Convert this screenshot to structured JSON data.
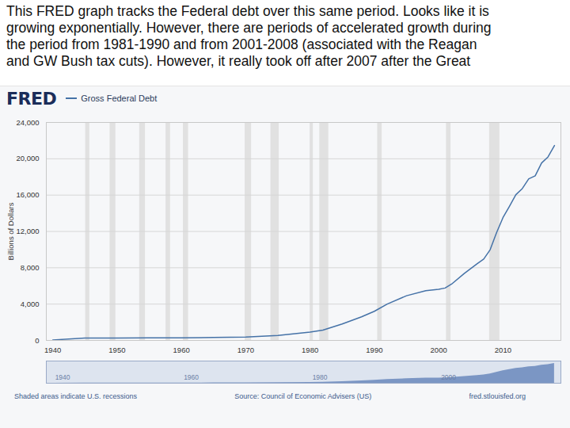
{
  "slide_text": [
    "This FRED graph tracks the Federal debt over this same period. Looks like it is",
    "growing exponentially. However, there are periods of accelerated growth during",
    "the period from 1981-1990 and from 2001-2008 (associated with the Reagan",
    "and GW Bush tax cuts). However, it really took off after 2007 after the Great"
  ],
  "logo": "FRED",
  "note": "Shaded areas indicate U.S. recessions",
  "source": "Source: Council of Economic Advisers (US)",
  "url": "fred.stlouisfed.org",
  "chart_data": [
    {
      "type": "line",
      "ylabel": "Billions of Dollars",
      "grid": true,
      "x": [
        1940,
        1945,
        1950,
        1955,
        1960,
        1965,
        1970,
        1975,
        1980,
        1982,
        1985,
        1988,
        1990,
        1992,
        1995,
        1998,
        2000,
        2001,
        2002,
        2004,
        2006,
        2007,
        2008,
        2009,
        2010,
        2011,
        2012,
        2013,
        2014,
        2015,
        2016,
        2017,
        2018
      ],
      "series": [
        {
          "name": "Gross Federal Debt",
          "color": "#4572a7",
          "values": [
            51,
            260,
            257,
            274,
            291,
            322,
            381,
            542,
            909,
            1137,
            1817,
            2602,
            3206,
            4002,
            4921,
            5478,
            5629,
            5770,
            6198,
            7379,
            8451,
            8951,
            9986,
            11876,
            13529,
            14764,
            16051,
            16719,
            17794,
            18120,
            19539,
            20206,
            21462
          ]
        }
      ],
      "recessions": [
        [
          1945.1,
          1945.75
        ],
        [
          1948.9,
          1949.8
        ],
        [
          1953.5,
          1954.4
        ],
        [
          1957.6,
          1958.3
        ],
        [
          1960.3,
          1961.1
        ],
        [
          1969.9,
          1970.9
        ],
        [
          1973.9,
          1975.2
        ],
        [
          1980.0,
          1980.5
        ],
        [
          1981.5,
          1982.9
        ],
        [
          1990.5,
          1991.2
        ],
        [
          2001.2,
          2001.9
        ],
        [
          2007.9,
          2009.5
        ]
      ],
      "recession_color": "#e1e1e1",
      "xlim": [
        1939,
        2019
      ],
      "xticks": [
        1940,
        1950,
        1960,
        1970,
        1980,
        1990,
        2000,
        2010
      ],
      "ylim": [
        0,
        24000
      ],
      "yticks": [
        0,
        {
          "value": 4000,
          "label": "4,000"
        },
        {
          "value": 8000,
          "label": "8,000"
        },
        {
          "value": 12000,
          "label": "12,000"
        },
        {
          "value": 16000,
          "label": "16,000"
        },
        {
          "value": 20000,
          "label": "20,000"
        },
        {
          "value": 24000,
          "label": "24,000"
        }
      ]
    },
    {
      "type": "area",
      "color": "#7b96c4",
      "xlim": [
        1939,
        2019
      ],
      "ylim": [
        0,
        24000
      ],
      "xticks": [
        1940,
        1960,
        1980,
        2000
      ],
      "tick_labels": "x"
    }
  ]
}
